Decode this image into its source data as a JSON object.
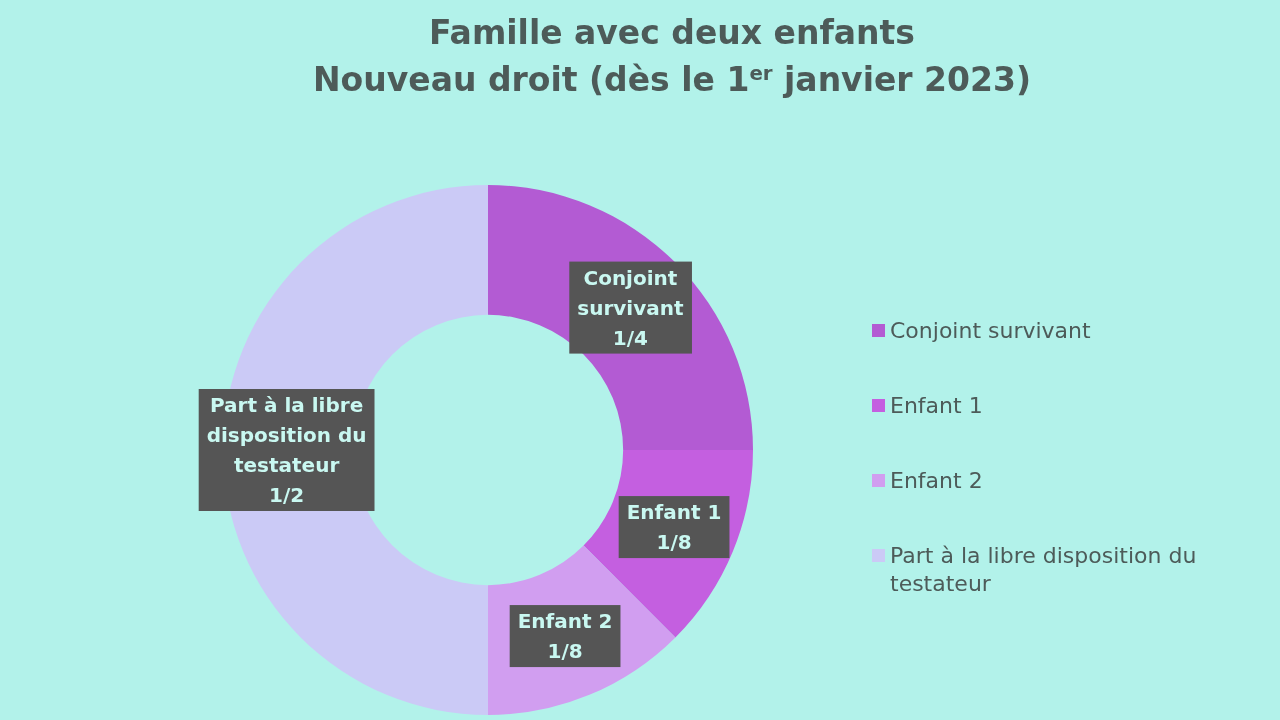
{
  "chart_data": {
    "type": "donut",
    "title": "Famille avec deux enfants",
    "subtitle": "Nouveau droit (dès le 1$^{er}$ janvier 2023)",
    "categories": [
      "Conjoint survivant",
      "Enfant 1",
      "Enfant 2",
      "Part à la libre disposition du testateur"
    ],
    "values": [
      0.25,
      0.125,
      0.125,
      0.5
    ],
    "colors": [
      "#b35bd3",
      "#c45fe0",
      "#d19ef0",
      "#cbcaf6"
    ],
    "value_labels": [
      "1/4",
      "1/8",
      "1/8",
      "1/2"
    ],
    "legend": "right"
  }
}
